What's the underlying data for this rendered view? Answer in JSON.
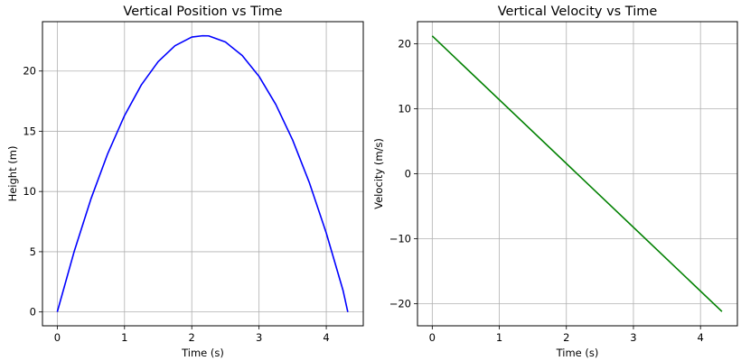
{
  "chart_data": [
    {
      "type": "line",
      "title": "Vertical Position vs Time",
      "xlabel": "Time (s)",
      "ylabel": "Height (m)",
      "xlim": [
        -0.22,
        4.55
      ],
      "ylim": [
        -1.15,
        24.1
      ],
      "xticks": [
        0,
        1,
        2,
        3,
        4
      ],
      "yticks": [
        0,
        5,
        10,
        15,
        20
      ],
      "grid": true,
      "series": [
        {
          "color": "#0000ff",
          "x": [
            0,
            0.25,
            0.5,
            0.75,
            1.0,
            1.25,
            1.5,
            1.75,
            2.0,
            2.16,
            2.25,
            2.5,
            2.75,
            3.0,
            3.25,
            3.5,
            3.75,
            4.0,
            4.25,
            4.32
          ],
          "y": [
            0,
            4.99,
            9.37,
            13.14,
            16.3,
            18.85,
            20.78,
            22.1,
            22.82,
            22.93,
            22.92,
            22.41,
            21.29,
            19.56,
            17.22,
            14.27,
            10.71,
            6.55,
            1.77,
            0
          ]
        }
      ]
    },
    {
      "type": "line",
      "title": "Vertical Velocity vs Time",
      "xlabel": "Time (s)",
      "ylabel": "Velocity (m/s)",
      "xlim": [
        -0.22,
        4.55
      ],
      "ylim": [
        -23.4,
        23.4
      ],
      "xticks": [
        0,
        1,
        2,
        3,
        4
      ],
      "yticks": [
        -20,
        -10,
        0,
        10,
        20
      ],
      "grid": true,
      "series": [
        {
          "color": "#008000",
          "x": [
            0,
            4.32
          ],
          "y": [
            21.2,
            -21.2
          ]
        }
      ]
    }
  ]
}
